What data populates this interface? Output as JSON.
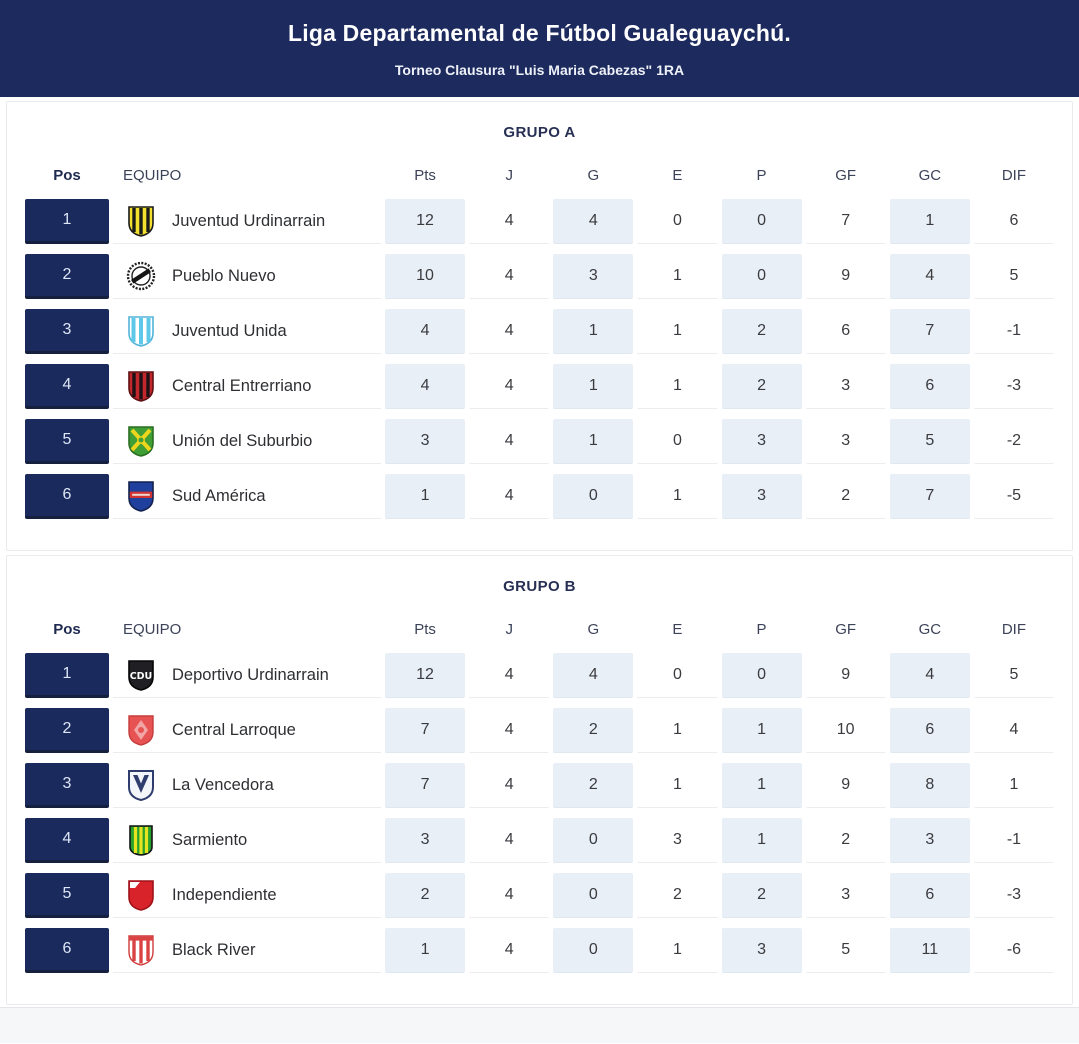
{
  "header": {
    "title": "Liga Departamental de Fútbol Gualeguaychú.",
    "subtitle": "Torneo Clausura \"Luis Maria Cabezas\" 1RA"
  },
  "columns": [
    "Pos",
    "EQUIPO",
    "Pts",
    "J",
    "G",
    "E",
    "P",
    "GF",
    "GC",
    "DIF"
  ],
  "colors": {
    "header_bg": "#1c2a5e",
    "position_cell_bg": "#1b2a5c",
    "stat_cell_alt_bg": "#e9eff6",
    "card_border": "#e9ebef"
  },
  "groups": [
    {
      "title": "GRUPO A",
      "rows": [
        {
          "pos": "1",
          "team": "Juventud Urdinarrain",
          "badge": "juventud-urdinarrain",
          "stats": [
            "12",
            "4",
            "4",
            "0",
            "0",
            "7",
            "1",
            "6"
          ]
        },
        {
          "pos": "2",
          "team": "Pueblo Nuevo",
          "badge": "pueblo-nuevo",
          "stats": [
            "10",
            "4",
            "3",
            "1",
            "0",
            "9",
            "4",
            "5"
          ]
        },
        {
          "pos": "3",
          "team": "Juventud Unida",
          "badge": "juventud-unida",
          "stats": [
            "4",
            "4",
            "1",
            "1",
            "2",
            "6",
            "7",
            "-1"
          ]
        },
        {
          "pos": "4",
          "team": "Central Entrerriano",
          "badge": "central-entrerriano",
          "stats": [
            "4",
            "4",
            "1",
            "1",
            "2",
            "3",
            "6",
            "-3"
          ]
        },
        {
          "pos": "5",
          "team": "Unión del Suburbio",
          "badge": "union-del-suburbio",
          "stats": [
            "3",
            "4",
            "1",
            "0",
            "3",
            "3",
            "5",
            "-2"
          ]
        },
        {
          "pos": "6",
          "team": "Sud América",
          "badge": "sud-america",
          "stats": [
            "1",
            "4",
            "0",
            "1",
            "3",
            "2",
            "7",
            "-5"
          ]
        }
      ]
    },
    {
      "title": "GRUPO B",
      "rows": [
        {
          "pos": "1",
          "team": "Deportivo Urdinarrain",
          "badge": "deportivo-urdinarrain",
          "stats": [
            "12",
            "4",
            "4",
            "0",
            "0",
            "9",
            "4",
            "5"
          ]
        },
        {
          "pos": "2",
          "team": "Central Larroque",
          "badge": "central-larroque",
          "stats": [
            "7",
            "4",
            "2",
            "1",
            "1",
            "10",
            "6",
            "4"
          ]
        },
        {
          "pos": "3",
          "team": "La Vencedora",
          "badge": "la-vencedora",
          "stats": [
            "7",
            "4",
            "2",
            "1",
            "1",
            "9",
            "8",
            "1"
          ]
        },
        {
          "pos": "4",
          "team": "Sarmiento",
          "badge": "sarmiento",
          "stats": [
            "3",
            "4",
            "0",
            "3",
            "1",
            "2",
            "3",
            "-1"
          ]
        },
        {
          "pos": "5",
          "team": "Independiente",
          "badge": "independiente",
          "stats": [
            "2",
            "4",
            "0",
            "2",
            "2",
            "3",
            "6",
            "-3"
          ]
        },
        {
          "pos": "6",
          "team": "Black River",
          "badge": "black-river",
          "stats": [
            "1",
            "4",
            "0",
            "1",
            "3",
            "5",
            "11",
            "-6"
          ]
        }
      ]
    }
  ]
}
